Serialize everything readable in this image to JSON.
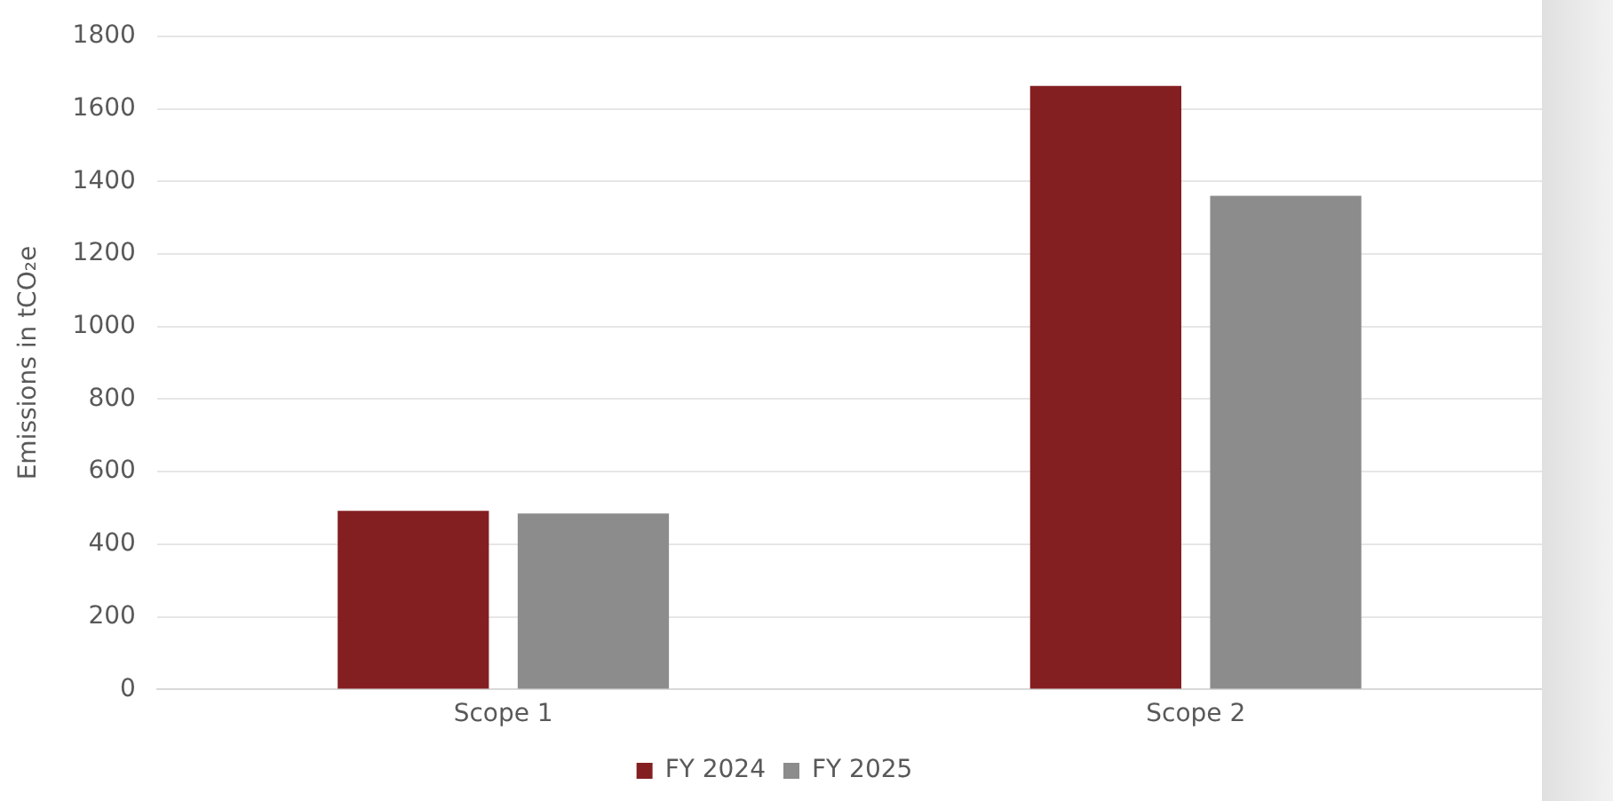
{
  "chart_data": {
    "type": "bar",
    "ylabel": "Emissions in tCO₂e",
    "categories": [
      "Scope 1",
      "Scope 2"
    ],
    "series": [
      {
        "name": "FY 2024",
        "color": "#841f21",
        "values": [
          492,
          1663
        ]
      },
      {
        "name": "FY 2025",
        "color": "#8c8c8c",
        "values": [
          485,
          1360
        ]
      }
    ],
    "ylim": [
      0,
      1800
    ],
    "yticks": [
      0,
      200,
      400,
      600,
      800,
      1000,
      1200,
      1400,
      1600,
      1800
    ],
    "grid": "y",
    "legend": "bottom"
  }
}
